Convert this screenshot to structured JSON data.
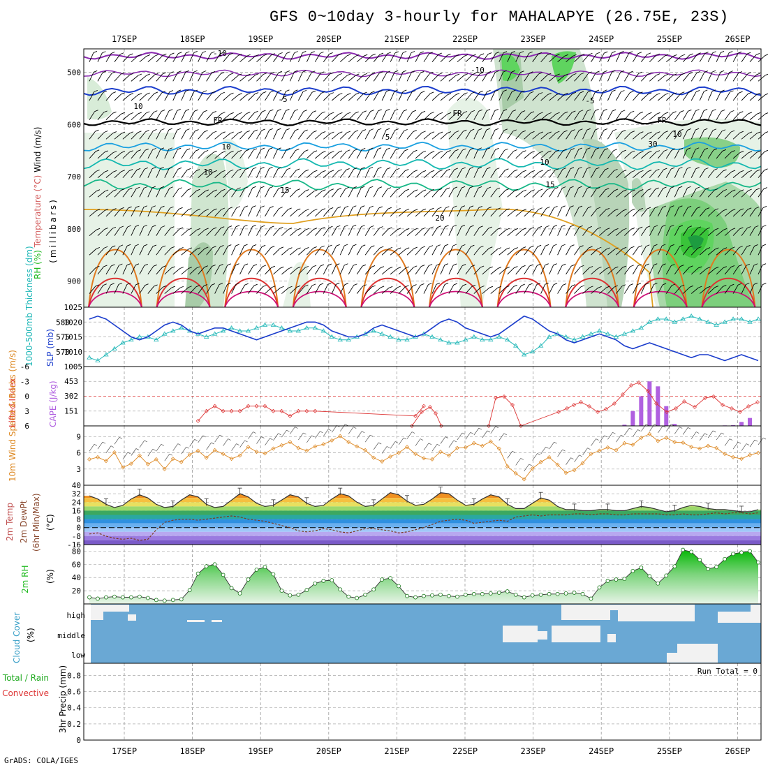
{
  "title": "GFS 0~10day 3-hourly for MAHALAPYE (26.75E, 23S)",
  "credit": "GrADS: COLA/IGES",
  "dates": [
    "17SEP",
    "18SEP",
    "19SEP",
    "20SEP",
    "21SEP",
    "22SEP",
    "23SEP",
    "24SEP",
    "25SEP",
    "26SEP"
  ],
  "colors": {
    "temp": "#d46060",
    "rh": "#22bb22",
    "wind": "#000000",
    "thickness": "#22b8b8",
    "slp": "#1a3ccc",
    "li": "#dd3333",
    "cape": "#b060e0",
    "wind10": "#dd8822",
    "precip_total": "#22aa22",
    "precip_conv": "#dd3333",
    "cloud": "#6aa8d4"
  },
  "chart_data": [
    {
      "id": "upper",
      "type": "contour",
      "ylabel_parts": [
        "Wind (m/s)",
        "Temperature (°C)",
        "RH (%)"
      ],
      "yunit": "(millibars)",
      "yticks": [
        "500",
        "600",
        "700",
        "800",
        "900"
      ],
      "contour_labels": [
        {
          "text": "-10",
          "color": "#8a2ab0"
        },
        {
          "text": "-10",
          "color": "#8a2ab0"
        },
        {
          "text": "-5",
          "color": "#1a3ccc"
        },
        {
          "text": "-5",
          "color": "#1a3ccc"
        },
        {
          "text": "FR",
          "color": "#000000"
        },
        {
          "text": "FR",
          "color": "#000000"
        },
        {
          "text": "FR",
          "color": "#000000"
        },
        {
          "text": "5",
          "color": "#1aa0e0"
        },
        {
          "text": "10",
          "color": "#14b8b0"
        },
        {
          "text": "10",
          "color": "#14b8b0"
        },
        {
          "text": "15",
          "color": "#18b888"
        },
        {
          "text": "15",
          "color": "#18b888"
        },
        {
          "text": "20",
          "color": "#e0a020"
        },
        {
          "text": "10",
          "color": "#999999"
        },
        {
          "text": "10",
          "color": "#999999"
        },
        {
          "text": "30",
          "color": "#999999"
        },
        {
          "text": "10",
          "color": "#999999"
        }
      ]
    },
    {
      "id": "thickness_slp",
      "type": "line",
      "ylabel_left": "1000-500mb Thickness (dm)",
      "ylabel_right": "SLP (mb)",
      "left_ticks": [
        "580",
        "575",
        "570"
      ],
      "right_ticks": [
        "1025",
        "1020",
        "1015",
        "1010",
        "1005"
      ],
      "series": [
        {
          "name": "SLP (mb)",
          "values": [
            1021,
            1022,
            1021,
            1019,
            1017,
            1015,
            1014,
            1015,
            1017,
            1019,
            1020,
            1019,
            1017,
            1016,
            1017,
            1018,
            1018,
            1017,
            1016,
            1015,
            1014,
            1015,
            1016,
            1017,
            1018,
            1019,
            1020,
            1020,
            1019,
            1017,
            1016,
            1015,
            1015,
            1016,
            1018,
            1019,
            1018,
            1017,
            1016,
            1015,
            1016,
            1018,
            1020,
            1021,
            1020,
            1018,
            1017,
            1016,
            1015,
            1016,
            1018,
            1020,
            1022,
            1021,
            1019,
            1017,
            1016,
            1014,
            1013,
            1014,
            1015,
            1016,
            1015,
            1014,
            1012,
            1011,
            1012,
            1013,
            1012,
            1011,
            1010,
            1009,
            1008,
            1009,
            1009,
            1008,
            1007,
            1008,
            1009,
            1008,
            1007
          ]
        },
        {
          "name": "Thickness (dm)",
          "values": [
            568,
            567,
            569,
            571,
            573,
            574,
            575,
            575,
            574,
            576,
            577,
            578,
            577,
            576,
            575,
            576,
            577,
            578,
            577,
            577,
            578,
            579,
            579,
            578,
            577,
            577,
            578,
            578,
            577,
            575,
            574,
            574,
            575,
            576,
            577,
            576,
            575,
            574,
            574,
            575,
            576,
            575,
            574,
            573,
            573,
            574,
            575,
            574,
            574,
            575,
            574,
            572,
            569,
            570,
            572,
            575,
            576,
            575,
            574,
            575,
            576,
            577,
            576,
            575,
            576,
            577,
            578,
            580,
            581,
            581,
            580,
            581,
            582,
            581,
            580,
            579,
            580,
            581,
            581,
            580,
            581
          ]
        }
      ]
    },
    {
      "id": "li_cape",
      "type": "line+bar",
      "ylabel_left": "Lifted Index",
      "ylabel_right": "CAPE (J/kg)",
      "left_ticks": [
        "-6",
        "-3",
        "0",
        "3",
        "6"
      ],
      "right_ticks": [
        "453",
        "302",
        "151"
      ],
      "series": [
        {
          "name": "Lifted Index",
          "values": [
            null,
            null,
            null,
            null,
            null,
            null,
            null,
            null,
            null,
            null,
            null,
            null,
            null,
            5,
            3,
            2,
            3,
            3,
            3,
            2,
            2,
            2,
            3,
            3,
            4,
            3,
            3,
            3,
            null,
            null,
            null,
            null,
            null,
            null,
            null,
            null,
            null,
            null,
            null,
            4,
            2,
            null,
            null,
            null,
            null,
            null,
            null,
            null,
            null,
            null,
            null,
            null,
            null,
            null,
            null,
            null,
            null,
            null,
            null,
            null,
            null,
            null,
            null,
            null,
            null,
            null,
            null,
            null,
            null,
            null,
            null,
            null,
            null,
            null,
            null,
            null,
            null,
            null,
            null,
            null,
            null
          ]
        },
        {
          "name": "CAPE (J/kg)",
          "values": [
            0,
            0,
            0,
            0,
            0,
            0,
            0,
            0,
            0,
            0,
            0,
            0,
            0,
            0,
            0,
            0,
            0,
            0,
            0,
            0,
            0,
            0,
            0,
            0,
            0,
            0,
            0,
            0,
            0,
            0,
            0,
            0,
            0,
            0,
            0,
            0,
            0,
            0,
            0,
            0,
            0,
            0,
            0,
            0,
            0,
            0,
            0,
            0,
            0,
            0,
            0,
            0,
            0,
            0,
            0,
            0,
            0,
            0,
            0,
            0,
            0,
            0,
            0,
            0,
            12,
            150,
            300,
            450,
            400,
            200,
            20,
            0,
            0,
            0,
            0,
            0,
            5,
            8,
            40,
            80,
            0
          ]
        }
      ]
    },
    {
      "id": "wind10",
      "type": "line",
      "ylabel": "10m Wind Speed & Barbs (m/s)",
      "yticks": [
        "9",
        "6",
        "3"
      ],
      "series": [
        {
          "name": "10m Wind Speed",
          "values": [
            4.8,
            5.2,
            4.5,
            6.1,
            3.3,
            4.0,
            5.5,
            3.9,
            4.8,
            3.0,
            4.9,
            4.3,
            5.7,
            6.4,
            5.1,
            6.5,
            5.8,
            4.9,
            5.5,
            7.1,
            6.2,
            5.9,
            6.8,
            7.4,
            8.0,
            6.9,
            6.4,
            7.2,
            7.6,
            8.3,
            9.1,
            8.0,
            7.2,
            6.5,
            5.1,
            4.4,
            5.3,
            6.0,
            7.1,
            5.8,
            5.0,
            4.8,
            6.2,
            5.5,
            6.9,
            7.0,
            7.8,
            7.3,
            8.1,
            6.8,
            3.5,
            2.2,
            1.1,
            3.1,
            4.3,
            5.2,
            3.8,
            2.3,
            2.8,
            4.1,
            5.8,
            6.4,
            7.0,
            6.5,
            7.8,
            7.5,
            8.8,
            9.5,
            8.2,
            8.8,
            8.0,
            7.9,
            7.1,
            6.8,
            7.3,
            6.9,
            5.8,
            5.2,
            4.9,
            5.6,
            6.0
          ]
        }
      ]
    },
    {
      "id": "temp2m",
      "type": "line",
      "ylabel": "2m Temp 2m DewPt (6hr Min/Max) (°C)",
      "yticks": [
        "40",
        "32",
        "24",
        "16",
        "8",
        "0",
        "-8",
        "-16"
      ],
      "series": [
        {
          "name": "2m Temp",
          "values": [
            30,
            27,
            22,
            19,
            21,
            27,
            31,
            28,
            22,
            19,
            20,
            26,
            31,
            29,
            22,
            19,
            20,
            26,
            32,
            29,
            23,
            20,
            21,
            26,
            31,
            29,
            23,
            20,
            21,
            27,
            32,
            30,
            24,
            20,
            21,
            27,
            33,
            31,
            25,
            21,
            22,
            27,
            33,
            32,
            26,
            21,
            22,
            27,
            31,
            29,
            22,
            18,
            18,
            23,
            28,
            26,
            20,
            17,
            17,
            16,
            16,
            17,
            17,
            16,
            16,
            18,
            20,
            19,
            17,
            15,
            16,
            19,
            21,
            20,
            18,
            17,
            17,
            16,
            15,
            15,
            17
          ]
        },
        {
          "name": "2m DewPt",
          "values": [
            -6,
            -5,
            -8,
            -10,
            -11,
            -10,
            -12,
            -11,
            -2,
            5,
            7,
            8,
            8,
            7,
            8,
            9,
            10,
            11,
            10,
            8,
            7,
            6,
            4,
            2,
            0,
            -3,
            -4,
            -3,
            -1,
            -2,
            -4,
            -5,
            -3,
            -1,
            -1,
            -2,
            -3,
            -5,
            -4,
            -2,
            0,
            3,
            6,
            7,
            8,
            7,
            4,
            5,
            6,
            7,
            6,
            10,
            11,
            12,
            11,
            12,
            12,
            12,
            13,
            13,
            12,
            13,
            13,
            12,
            12,
            13,
            13,
            13,
            13,
            12,
            12,
            13,
            12,
            12,
            13,
            14,
            13,
            14,
            14,
            13,
            14
          ]
        }
      ]
    },
    {
      "id": "rh2m",
      "type": "area",
      "ylabel": "2m RH (%)",
      "yticks": [
        "80",
        "60",
        "40",
        "20"
      ],
      "series": [
        {
          "name": "2m RH",
          "values": [
            10,
            8,
            10,
            11,
            10,
            10,
            11,
            9,
            6,
            5,
            6,
            7,
            21,
            46,
            57,
            60,
            44,
            24,
            16,
            37,
            52,
            56,
            45,
            20,
            13,
            14,
            21,
            31,
            35,
            36,
            22,
            11,
            9,
            14,
            22,
            37,
            39,
            27,
            12,
            10,
            12,
            13,
            14,
            12,
            11,
            14,
            15,
            15,
            16,
            17,
            19,
            14,
            10,
            13,
            14,
            15,
            15,
            16,
            17,
            15,
            8,
            25,
            35,
            37,
            38,
            50,
            55,
            42,
            31,
            43,
            57,
            82,
            79,
            67,
            53,
            56,
            68,
            76,
            78,
            80,
            63
          ]
        }
      ]
    },
    {
      "id": "cloud",
      "type": "heatmap",
      "ylabel": "Cloud Cover (%)",
      "yticks": [
        "high",
        "middle",
        "low"
      ]
    },
    {
      "id": "precip",
      "type": "bar",
      "ylabel": "3hr Precip (mm)",
      "ylabel_left": "Total / Rain",
      "ylabel_left2": "Convective",
      "yticks": [
        "0.8",
        "0.6",
        "0.4",
        "0.2",
        "0"
      ],
      "run_total": "Run Total = 0",
      "series": [
        {
          "name": "3hr Precip",
          "values": [
            0,
            0,
            0,
            0,
            0,
            0,
            0,
            0,
            0,
            0,
            0,
            0,
            0,
            0,
            0,
            0,
            0,
            0,
            0,
            0,
            0,
            0,
            0,
            0,
            0,
            0,
            0,
            0,
            0,
            0,
            0,
            0,
            0,
            0,
            0,
            0,
            0,
            0,
            0,
            0,
            0,
            0,
            0,
            0,
            0,
            0,
            0,
            0,
            0,
            0,
            0,
            0,
            0,
            0,
            0,
            0,
            0,
            0,
            0,
            0,
            0,
            0,
            0,
            0,
            0,
            0,
            0,
            0,
            0,
            0,
            0,
            0,
            0,
            0,
            0,
            0,
            0,
            0,
            0,
            0,
            0
          ]
        }
      ]
    }
  ]
}
